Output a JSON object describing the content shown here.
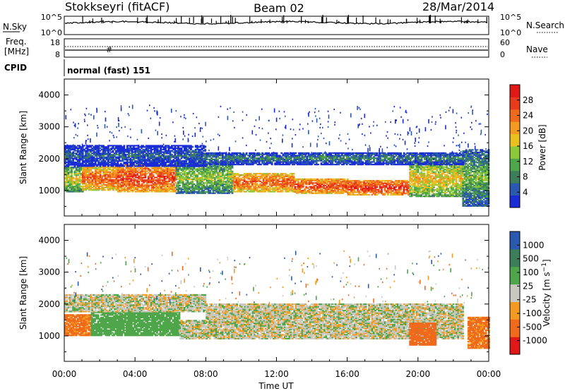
{
  "header": {
    "station": "Stokkseyri (fitACF)",
    "beam": "Beam 02",
    "date": "28/Mar/2014"
  },
  "nsky_panel": {
    "left_label": "N.Sky",
    "right_label": "N.Search",
    "left_ticks": [
      "10^5",
      "10^0"
    ],
    "right_ticks": [
      "10^5",
      "10^0"
    ]
  },
  "freq_panel": {
    "left_label_1": "Freq.",
    "left_label_2": "[MHz]",
    "right_label": "Nave",
    "left_ticks": [
      "18",
      "8"
    ],
    "right_ticks": [
      "60",
      "0"
    ]
  },
  "cpid_panel": {
    "label": "CPID",
    "text": "normal (fast) 151"
  },
  "colors": {
    "power_scale": [
      "#1a2cd6",
      "#2a5ab0",
      "#3c7e5a",
      "#4fa64a",
      "#8cc83c",
      "#e8c020",
      "#f39a20",
      "#f06a1c",
      "#e83a1c",
      "#e01818"
    ],
    "velocity_scale": [
      "#e01818",
      "#f06a1c",
      "#f39a20",
      "#c8c8c0",
      "#4fa64a",
      "#3c7e5a",
      "#2a5ab0",
      "#1a2cd6"
    ]
  },
  "chart_data": [
    {
      "type": "heatmap",
      "parameter": "Power",
      "ylabel": "Slant Range [km]",
      "ylim": [
        200,
        4500
      ],
      "y_ticks": [
        1000,
        2000,
        3000,
        4000
      ],
      "x_ticks": [
        "00:00",
        "04:00",
        "08:00",
        "12:00",
        "16:00",
        "20:00",
        "00:00"
      ],
      "xlim_hours": [
        0,
        24
      ],
      "colorbar": {
        "label": "Power [dB]",
        "ticks": [
          4,
          8,
          12,
          16,
          20,
          24,
          28
        ],
        "range": [
          0,
          30
        ]
      },
      "bands": [
        {
          "t": [
            0.0,
            1.0
          ],
          "range_km": [
            950,
            1750
          ],
          "value": 16
        },
        {
          "t": [
            1.0,
            3.0
          ],
          "range_km": [
            1000,
            1750
          ],
          "value": 24
        },
        {
          "t": [
            3.0,
            6.3
          ],
          "range_km": [
            950,
            1800
          ],
          "value": 26
        },
        {
          "t": [
            6.3,
            9.5
          ],
          "range_km": [
            900,
            1900
          ],
          "value": 14
        },
        {
          "t": [
            9.5,
            13.0
          ],
          "range_km": [
            950,
            1550
          ],
          "value": 24
        },
        {
          "t": [
            13.0,
            16.0
          ],
          "range_km": [
            900,
            1350
          ],
          "value": 26
        },
        {
          "t": [
            16.0,
            19.5
          ],
          "range_km": [
            850,
            1300
          ],
          "value": 27
        },
        {
          "t": [
            19.5,
            22.5
          ],
          "range_km": [
            800,
            1900
          ],
          "value": 18
        },
        {
          "t": [
            22.5,
            24.0
          ],
          "range_km": [
            500,
            2300
          ],
          "value": 12
        },
        {
          "t": [
            0.0,
            8.0
          ],
          "range_km": [
            1750,
            2400
          ],
          "value": 6
        },
        {
          "t": [
            8.0,
            22.5
          ],
          "range_km": [
            1800,
            2200
          ],
          "value": 8
        }
      ]
    },
    {
      "type": "heatmap",
      "parameter": "Velocity",
      "ylabel": "Slant Range [km]",
      "ylim": [
        200,
        4500
      ],
      "y_ticks": [
        1000,
        2000,
        3000,
        4000
      ],
      "x_ticks": [
        "00:00",
        "04:00",
        "08:00",
        "12:00",
        "16:00",
        "20:00",
        "00:00"
      ],
      "xlabel": "Time UT",
      "xlim_hours": [
        0,
        24
      ],
      "colorbar": {
        "label": "Velocity [m s^-1]",
        "ticks": [
          -1000,
          -500,
          -100,
          -25,
          25,
          100,
          500,
          1000
        ]
      },
      "bands": [
        {
          "t": [
            0.0,
            1.5
          ],
          "range_km": [
            1000,
            1650
          ],
          "value": -300
        },
        {
          "t": [
            1.5,
            6.5
          ],
          "range_km": [
            1000,
            1750
          ],
          "value": 150
        },
        {
          "t": [
            6.5,
            8.0
          ],
          "range_km": [
            900,
            1500
          ],
          "value": 0
        },
        {
          "t": [
            0.0,
            8.0
          ],
          "range_km": [
            1750,
            2300
          ],
          "value": 0
        },
        {
          "t": [
            8.0,
            22.5
          ],
          "range_km": [
            900,
            2000
          ],
          "value": 0
        },
        {
          "t": [
            19.5,
            21.0
          ],
          "range_km": [
            700,
            1400
          ],
          "value": -400
        },
        {
          "t": [
            22.8,
            24.0
          ],
          "range_km": [
            600,
            1600
          ],
          "value": -300
        }
      ]
    }
  ]
}
